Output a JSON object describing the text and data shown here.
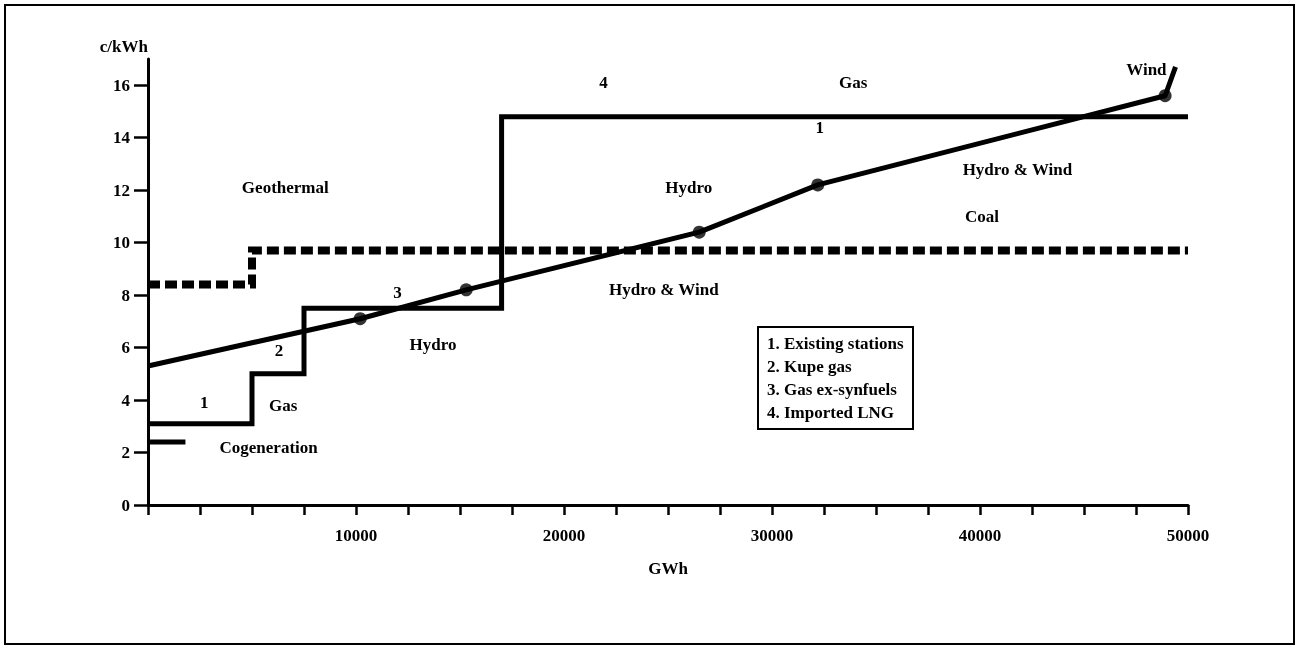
{
  "chart_data": {
    "type": "line",
    "xlabel": "GWh",
    "ylabel": "c/kWh",
    "xlim": [
      0,
      50000
    ],
    "ylim": [
      0,
      17
    ],
    "xticks": [
      {
        "value": 0,
        "label": null
      },
      {
        "value": 2500,
        "label": null
      },
      {
        "value": 5000,
        "label": null
      },
      {
        "value": 7500,
        "label": null
      },
      10000,
      {
        "value": 12500,
        "label": null
      },
      {
        "value": 15000,
        "label": null
      },
      {
        "value": 17500,
        "label": null
      },
      20000,
      {
        "value": 22500,
        "label": null
      },
      {
        "value": 25000,
        "label": null
      },
      {
        "value": 27500,
        "label": null
      },
      30000,
      {
        "value": 32500,
        "label": null
      },
      {
        "value": 35000,
        "label": null
      },
      {
        "value": 37500,
        "label": null
      },
      40000,
      {
        "value": 42500,
        "label": null
      },
      {
        "value": 45000,
        "label": null
      },
      {
        "value": 47500,
        "label": null
      },
      50000
    ],
    "yticks": [
      0,
      2,
      4,
      6,
      8,
      10,
      12,
      14,
      16
    ],
    "grid": false,
    "series": [
      {
        "type": "step",
        "color": "#000000",
        "line_style": "solid",
        "x": [
          0,
          5000,
          7500,
          17000,
          50000
        ],
        "values": [
          3.1,
          5,
          7.5,
          14.8,
          14.8
        ]
      },
      {
        "type": "step",
        "color": "#000000",
        "line_style": "dashed",
        "x": [
          0,
          5000,
          50000
        ],
        "values": [
          8.4,
          9.7,
          9.7
        ]
      },
      {
        "type": "line",
        "color": "#000000",
        "line_style": "solid",
        "x": [
          0,
          1800
        ],
        "values": [
          2.4,
          2.4
        ]
      },
      {
        "type": "line",
        "color": "#000000",
        "line_style": "solid",
        "x": [
          0,
          10200,
          15300,
          26500,
          32200,
          48900,
          49400
        ],
        "values": [
          5.3,
          7.1,
          8.2,
          10.4,
          12.2,
          15.6,
          16.7
        ]
      },
      {
        "type": "scatter",
        "color": "#000000",
        "marker": "circle",
        "x": [
          10200,
          15300,
          26500,
          32200,
          48900
        ],
        "values": [
          7.1,
          8.2,
          10.4,
          12.2,
          15.6
        ]
      }
    ],
    "annotations": [
      "1",
      "Gas",
      "2",
      "3",
      "4",
      "Gas",
      "Geothermal",
      "Hydro",
      "Hydro & Wind",
      "Hydro",
      "1",
      "Hydro & Wind",
      "Coal",
      "Wind",
      "Cogeneration",
      "1. Existing stations",
      "2. Kupe gas",
      "3. Gas ex-synfuels",
      "4. Imported LNG"
    ]
  }
}
